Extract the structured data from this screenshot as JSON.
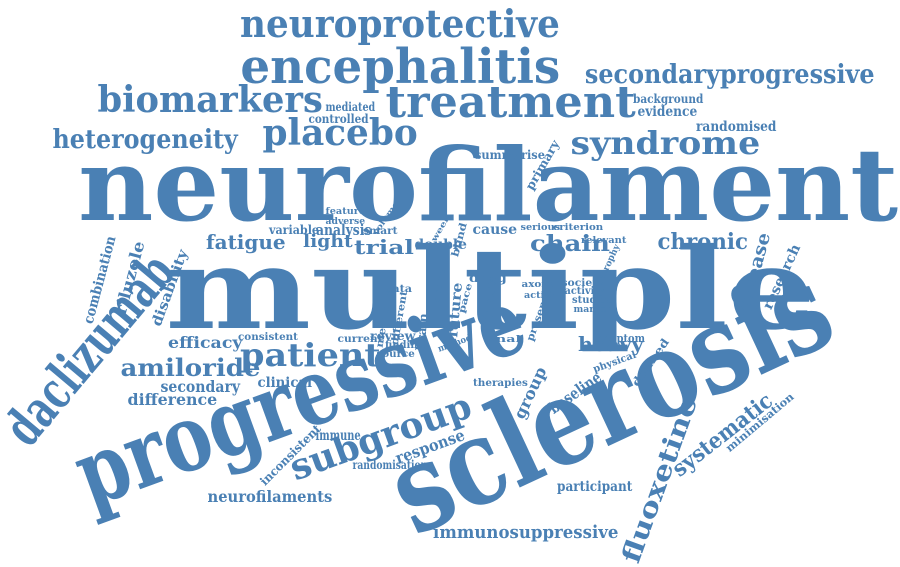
{
  "color": "#4a80b4",
  "words": [
    "neurofilament",
    "multiple",
    "sclerosis",
    "progressive",
    "daclizumab",
    "encephalitis",
    "neuroprotective",
    "treatment",
    "biomarkers",
    "placebo",
    "syndrome",
    "heterogeneity",
    "secondaryprogressive",
    "subgroup",
    "fatigue",
    "patient",
    "amiloride",
    "chronic",
    "chain",
    "heavy",
    "trial",
    "light",
    "fluoxetine",
    "systematic",
    "immunosuppressive",
    "neurofilaments",
    "response",
    "difference",
    "secondary",
    "efficacy",
    "riluzole",
    "disability",
    "combination",
    "disease",
    "research",
    "clinical",
    "randomised",
    "evidence",
    "background",
    "mediated",
    "controlled",
    "analysis",
    "variable",
    "summarise",
    "primary",
    "review",
    "finding",
    "source",
    "future",
    "brain",
    "phase",
    "group",
    "baseline",
    "immune",
    "inconsistent",
    "randomisation",
    "participant",
    "therapies",
    "minimisation",
    "symptom",
    "defined",
    "physical",
    "studies",
    "marker",
    "activity",
    "society",
    "double",
    "cause",
    "blind",
    "drug",
    "smart",
    "feature",
    "adverse",
    "volume",
    "week",
    "serious",
    "criterion",
    "relevant",
    "atrophy",
    "data",
    "medicine",
    "current",
    "different",
    "consistent",
    "method",
    "axonal",
    "active",
    "presence",
    "score",
    "final",
    "pace"
  ]
}
